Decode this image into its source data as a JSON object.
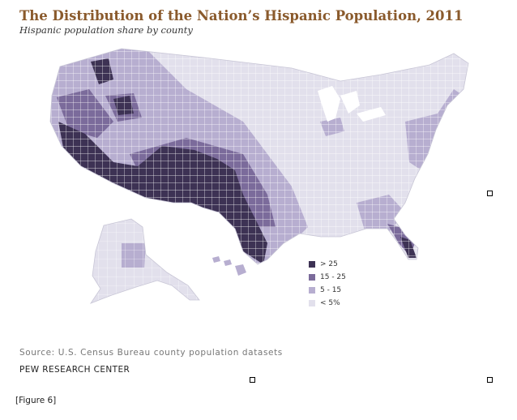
{
  "title": "The Distribution of the Nation’s Hispanic Population, 2011",
  "subtitle": "Hispanic population share by county",
  "colors": {
    "background": "#ffffff",
    "title": "#8a5a2c",
    "class_gt25": "#3d3254",
    "class_15_25": "#7b6b9b",
    "class_5_15": "#b7aed0",
    "class_lt5": "#e2e0ec",
    "county_border": "#ffffff"
  },
  "legend": [
    {
      "label": "> 25",
      "color": "#3d3254"
    },
    {
      "label": "15 - 25",
      "color": "#7b6b9b"
    },
    {
      "label": "5 - 15",
      "color": "#b7aed0"
    },
    {
      "label": "< 5%",
      "color": "#e2e0ec"
    }
  ],
  "source": "Source: U.S. Census Bureau county population datasets",
  "organization": "PEW RESEARCH CENTER",
  "caption": "[Figure 6]"
}
